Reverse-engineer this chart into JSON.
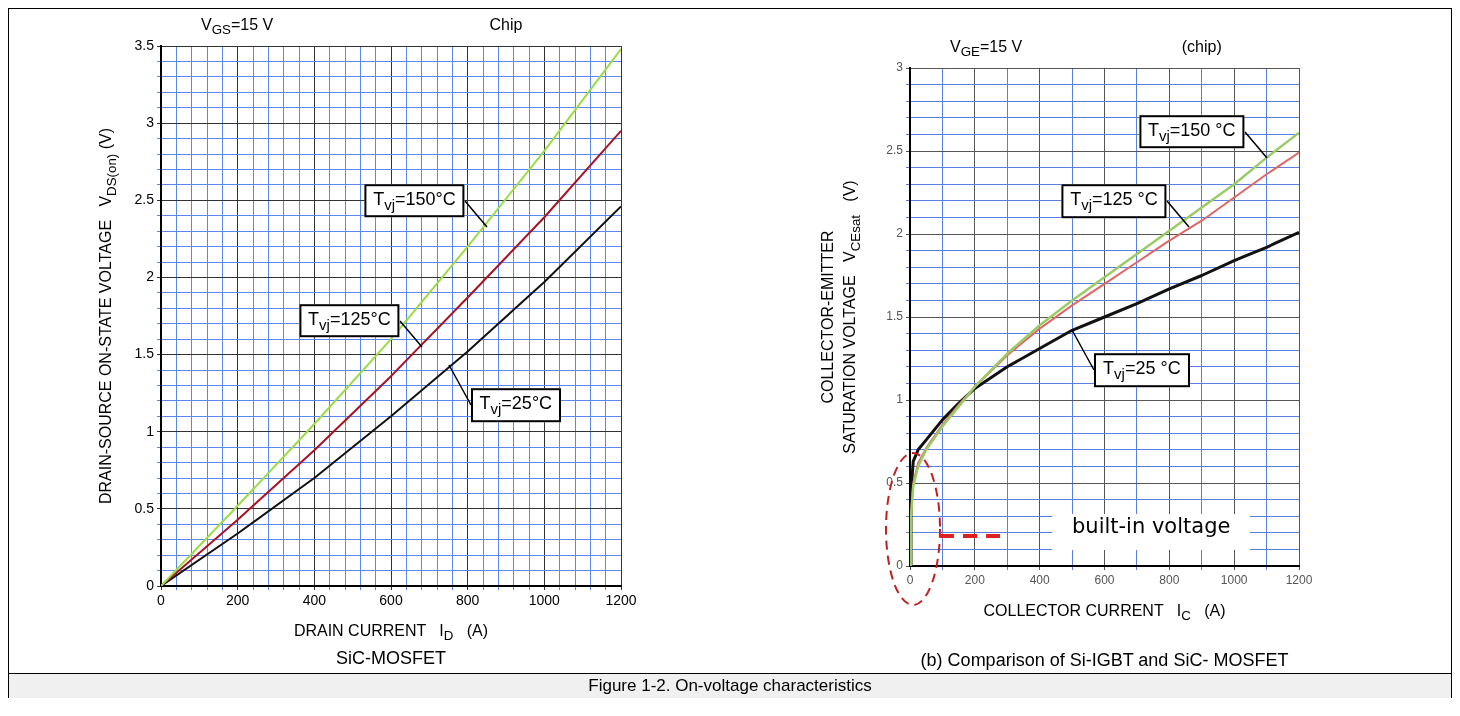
{
  "chart_data": [
    {
      "type": "line",
      "title": "SiC-MOSFET",
      "xlabel": "DRAIN CURRENT   I$_{D}$   (A)",
      "ylabel": "DRAIN-SOURCE ON-STATE VOLTAGE   V$_{DS(on)}$ (V)",
      "annotations": [
        "V$_{GS}$=15 V",
        "Chip",
        {
          "text": "T$_{vj}$=150°C",
          "x": 850,
          "y": 2.33
        },
        {
          "text": "T$_{vj}$=125°C",
          "x": 680,
          "y": 1.55
        },
        {
          "text": "T$_{vj}$=25°C",
          "x": 750,
          "y": 1.43
        }
      ],
      "grid": true,
      "xlim": [
        0,
        1200
      ],
      "ylim": [
        0,
        3.5
      ],
      "xticks": [
        0,
        {
          "value": 40,
          "label": null
        },
        {
          "value": 80,
          "label": null
        },
        {
          "value": 120,
          "label": null
        },
        {
          "value": 160,
          "label": null
        },
        200,
        {
          "value": 240,
          "label": null
        },
        {
          "value": 280,
          "label": null
        },
        {
          "value": 320,
          "label": null
        },
        {
          "value": 360,
          "label": null
        },
        400,
        {
          "value": 440,
          "label": null
        },
        {
          "value": 480,
          "label": null
        },
        {
          "value": 520,
          "label": null
        },
        {
          "value": 560,
          "label": null
        },
        600,
        {
          "value": 640,
          "label": null
        },
        {
          "value": 680,
          "label": null
        },
        {
          "value": 720,
          "label": null
        },
        {
          "value": 760,
          "label": null
        },
        800,
        {
          "value": 840,
          "label": null
        },
        {
          "value": 880,
          "label": null
        },
        {
          "value": 920,
          "label": null
        },
        {
          "value": 960,
          "label": null
        },
        1000,
        {
          "value": 1040,
          "label": null
        },
        {
          "value": 1080,
          "label": null
        },
        {
          "value": 1120,
          "label": null
        },
        {
          "value": 1160,
          "label": null
        },
        1200
      ],
      "yticks": [
        0,
        {
          "value": 0.1,
          "label": null
        },
        {
          "value": 0.2,
          "label": null
        },
        {
          "value": 0.3,
          "label": null
        },
        {
          "value": 0.4,
          "label": null
        },
        0.5,
        {
          "value": 0.6,
          "label": null
        },
        {
          "value": 0.7,
          "label": null
        },
        {
          "value": 0.8,
          "label": null
        },
        {
          "value": 0.9,
          "label": null
        },
        1,
        {
          "value": 1.1,
          "label": null
        },
        {
          "value": 1.2,
          "label": null
        },
        {
          "value": 1.3,
          "label": null
        },
        {
          "value": 1.4,
          "label": null
        },
        1.5,
        {
          "value": 1.6,
          "label": null
        },
        {
          "value": 1.7,
          "label": null
        },
        {
          "value": 1.8,
          "label": null
        },
        {
          "value": 1.9,
          "label": null
        },
        2,
        {
          "value": 2.1,
          "label": null
        },
        {
          "value": 2.2,
          "label": null
        },
        {
          "value": 2.3,
          "label": null
        },
        {
          "value": 2.4,
          "label": null
        },
        2.5,
        {
          "value": 2.6,
          "label": null
        },
        {
          "value": 2.7,
          "label": null
        },
        {
          "value": 2.8,
          "label": null
        },
        {
          "value": 2.9,
          "label": null
        },
        3,
        {
          "value": 3.1,
          "label": null
        },
        {
          "value": 3.2,
          "label": null
        },
        {
          "value": 3.3,
          "label": null
        },
        {
          "value": 3.4,
          "label": null
        },
        3.5
      ],
      "x": [
        0,
        200,
        400,
        600,
        800,
        1000,
        1200
      ],
      "series": [
        {
          "color": "#99dd44",
          "values": [
            0,
            0.52,
            1.05,
            1.6,
            2.2,
            2.82,
            3.48
          ]
        },
        {
          "color": "#aa1122",
          "values": [
            0,
            0.43,
            0.88,
            1.36,
            1.87,
            2.39,
            2.95
          ]
        },
        {
          "color": "#111111",
          "values": [
            0,
            0.34,
            0.7,
            1.1,
            1.52,
            1.97,
            2.46
          ]
        }
      ]
    },
    {
      "type": "line",
      "title": "(b) Comparison of Si-IGBT and SiC- MOSFET",
      "xlabel": "COLLECTOR CURRENT   I$_{C}$   (A)",
      "ylabel": "COLLECTOR-EMITTER\nSATURATION VOLTAGE   V$_{CEsat}$   (V)",
      "annotations": [
        "V$_{GE}$=15 V",
        "(chip)",
        "built-in voltage",
        {
          "text": "T$_{vj}$=150 °C",
          "x": 1100,
          "y": 2.46
        },
        {
          "text": "T$_{vj}$=125 °C",
          "x": 860,
          "y": 2.04
        },
        {
          "text": "T$_{vj}$=25 °C",
          "x": 500,
          "y": 1.42
        }
      ],
      "grid": true,
      "xlim": [
        0,
        1200
      ],
      "ylim": [
        0,
        3
      ],
      "xticks": [
        0,
        {
          "value": 100,
          "label": null
        },
        200,
        {
          "value": 300,
          "label": null
        },
        400,
        {
          "value": 500,
          "label": null
        },
        600,
        {
          "value": 700,
          "label": null
        },
        800,
        {
          "value": 900,
          "label": null
        },
        1000,
        {
          "value": 1100,
          "label": null
        },
        1200
      ],
      "yticks": [
        0,
        {
          "value": 0.1,
          "label": null
        },
        {
          "value": 0.2,
          "label": null
        },
        {
          "value": 0.3,
          "label": null
        },
        {
          "value": 0.4,
          "label": null
        },
        0.5,
        {
          "value": 0.6,
          "label": null
        },
        {
          "value": 0.7,
          "label": null
        },
        {
          "value": 0.8,
          "label": null
        },
        {
          "value": 0.9,
          "label": null
        },
        1,
        {
          "value": 1.1,
          "label": null
        },
        {
          "value": 1.2,
          "label": null
        },
        {
          "value": 1.3,
          "label": null
        },
        {
          "value": 1.4,
          "label": null
        },
        1.5,
        {
          "value": 1.6,
          "label": null
        },
        {
          "value": 1.7,
          "label": null
        },
        {
          "value": 1.8,
          "label": null
        },
        {
          "value": 1.9,
          "label": null
        },
        2,
        {
          "value": 2.1,
          "label": null
        },
        {
          "value": 2.2,
          "label": null
        },
        {
          "value": 2.3,
          "label": null
        },
        {
          "value": 2.4,
          "label": null
        },
        2.5,
        {
          "value": 2.6,
          "label": null
        },
        {
          "value": 2.7,
          "label": null
        },
        {
          "value": 2.8,
          "label": null
        },
        {
          "value": 2.9,
          "label": null
        },
        3
      ],
      "x": [
        0,
        3,
        10,
        25,
        50,
        100,
        150,
        200,
        300,
        400,
        500,
        600,
        700,
        800,
        900,
        1000,
        1100,
        1200
      ],
      "series": [
        {
          "color": "#99cc66",
          "values": [
            0,
            0.3,
            0.48,
            0.6,
            0.7,
            0.84,
            0.96,
            1.08,
            1.28,
            1.45,
            1.6,
            1.74,
            1.88,
            2.02,
            2.16,
            2.3,
            2.46,
            2.61
          ]
        },
        {
          "color": "#e06666",
          "values": [
            0,
            0.3,
            0.5,
            0.62,
            0.71,
            0.85,
            0.97,
            1.08,
            1.27,
            1.43,
            1.57,
            1.7,
            1.83,
            1.96,
            2.08,
            2.22,
            2.36,
            2.49
          ]
        },
        {
          "color": "#111111",
          "values": [
            0,
            0.45,
            0.63,
            0.7,
            0.76,
            0.88,
            0.98,
            1.07,
            1.2,
            1.31,
            1.42,
            1.5,
            1.58,
            1.67,
            1.75,
            1.84,
            1.92,
            2.01
          ]
        }
      ]
    },
    {
      "type": "other",
      "title": "Figure 1-2. On-voltage characteristics"
    }
  ]
}
